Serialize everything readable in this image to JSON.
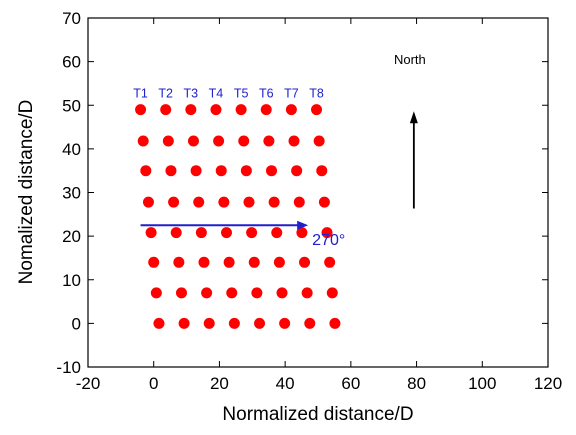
{
  "chart_data": {
    "type": "scatter",
    "title": "",
    "xlabel": "Normalized distance/D",
    "ylabel": "Nomalized distance/D",
    "xlim": [
      -20,
      120
    ],
    "ylim": [
      -10,
      70
    ],
    "xticks": [
      -20,
      0,
      20,
      40,
      60,
      80,
      100,
      120
    ],
    "yticks": [
      -10,
      0,
      10,
      20,
      30,
      40,
      50,
      60,
      70
    ],
    "grid": false,
    "marker_color": "#ff0000",
    "annotation_color": "#2020cc",
    "row_y": [
      49,
      41.8,
      35,
      27.8,
      20.8,
      14,
      7,
      0
    ],
    "row_x_start": [
      -4,
      -3.2,
      -2.4,
      -1.6,
      -0.8,
      0,
      0.8,
      1.6
    ],
    "column_spacing": 7.65,
    "turbines_per_row": 8,
    "turbine_labels": [
      "T1",
      "T2",
      "T3",
      "T4",
      "T5",
      "T6",
      "T7",
      "T8"
    ],
    "wind_arrow": {
      "label": "270°",
      "x_start": -4,
      "x_end": 47,
      "y": 22.5
    },
    "north_arrow": {
      "label": "North",
      "x": 67,
      "y_start": 30,
      "y_end": 50
    }
  }
}
